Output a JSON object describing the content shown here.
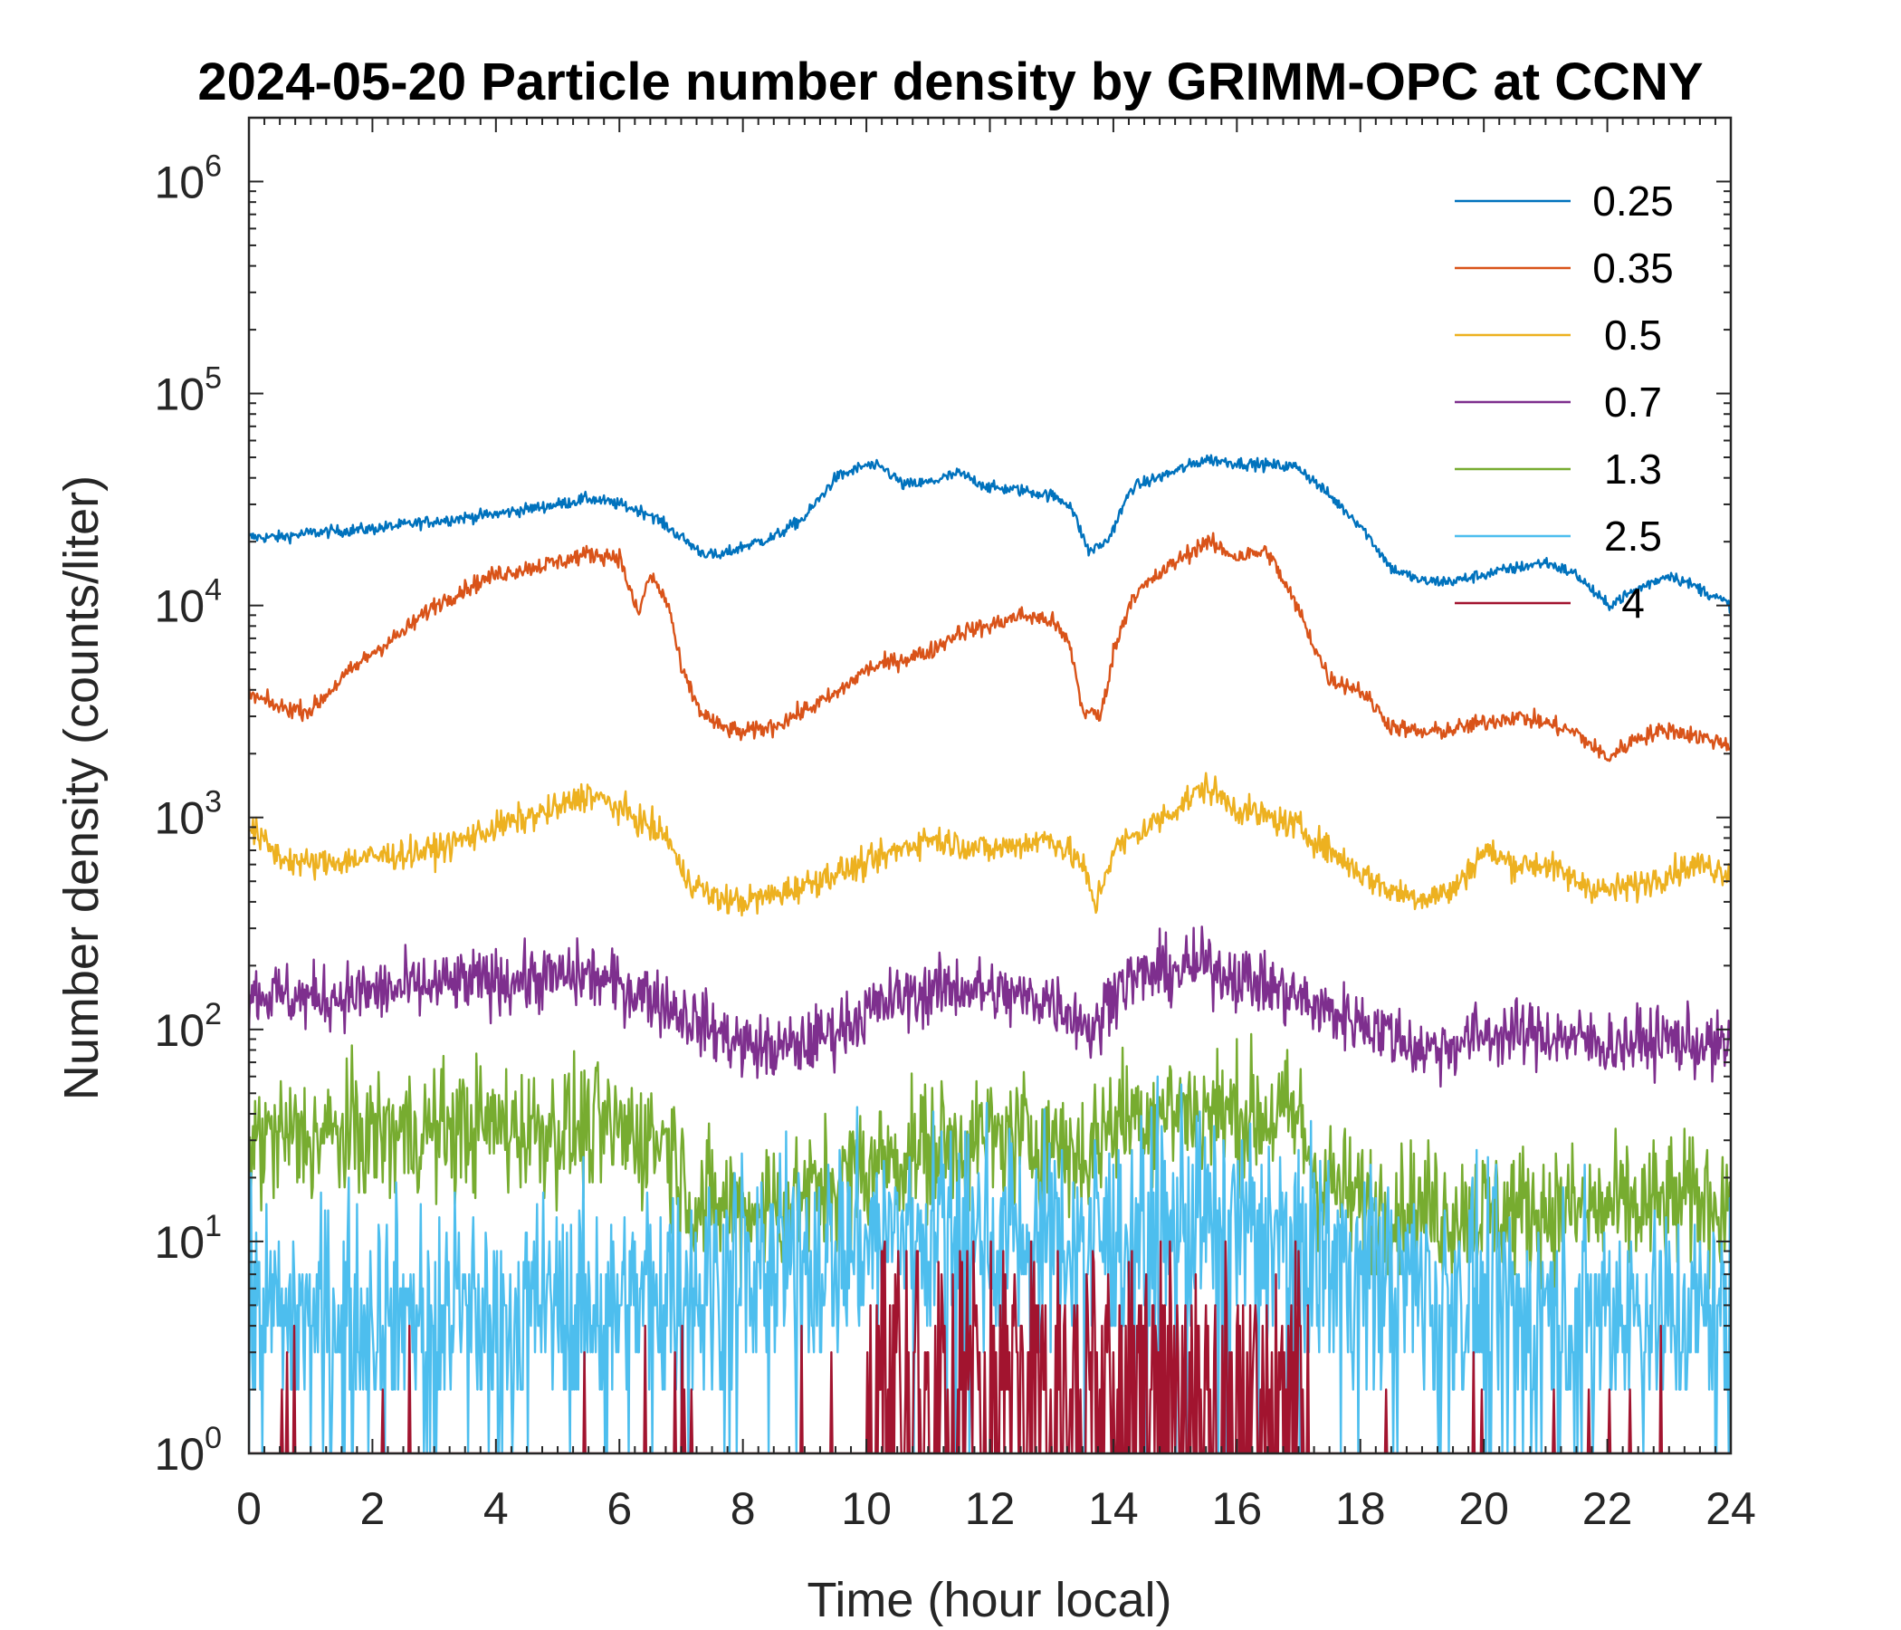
{
  "chart_data": {
    "type": "line",
    "title": "2024-05-20 Particle number density by GRIMM-OPC at CCNY",
    "xlabel": "Time (hour local)",
    "ylabel": "Number density (counts/liter)",
    "xlim": [
      0,
      24
    ],
    "ylim": [
      1,
      2000000
    ],
    "yscale": "log",
    "x_ticks": [
      0,
      2,
      4,
      6,
      8,
      10,
      12,
      14,
      16,
      18,
      20,
      22,
      24
    ],
    "y_ticks": [
      {
        "value": 1,
        "base": "10",
        "exp": "0"
      },
      {
        "value": 10,
        "base": "10",
        "exp": "1"
      },
      {
        "value": 100,
        "base": "10",
        "exp": "2"
      },
      {
        "value": 1000,
        "base": "10",
        "exp": "3"
      },
      {
        "value": 10000,
        "base": "10",
        "exp": "4"
      },
      {
        "value": 100000,
        "base": "10",
        "exp": "5"
      },
      {
        "value": 1000000,
        "base": "10",
        "exp": "6"
      }
    ],
    "legend_position": "top-right",
    "series": [
      {
        "name": "0.25",
        "color": "#0072BD",
        "noise": 0.04,
        "x": [
          0,
          0.5,
          1,
          2,
          3,
          4,
          5,
          5.5,
          6,
          6.5,
          7,
          7.3,
          7.6,
          8,
          8.5,
          9,
          9.5,
          10,
          10.3,
          10.6,
          11,
          11.5,
          12,
          12.5,
          13,
          13.3,
          13.6,
          13.9,
          14.3,
          15,
          15.5,
          16,
          16.5,
          17,
          17.5,
          18,
          18.5,
          19,
          19.5,
          20,
          20.5,
          21,
          21.5,
          22,
          22.5,
          23,
          23.5,
          24
        ],
        "y": [
          21000,
          21000,
          22000,
          23000,
          25000,
          27000,
          30000,
          32000,
          30000,
          27000,
          21000,
          18000,
          17000,
          19000,
          21000,
          26000,
          40000,
          46000,
          44000,
          37000,
          38000,
          42000,
          36000,
          35000,
          33000,
          30000,
          18000,
          20000,
          36000,
          43000,
          49000,
          47000,
          46000,
          45000,
          33000,
          24000,
          15000,
          13000,
          13000,
          14000,
          15000,
          16000,
          14000,
          10000,
          12000,
          14000,
          12000,
          10000
        ]
      },
      {
        "name": "0.35",
        "color": "#D95319",
        "noise": 0.06,
        "x": [
          0,
          0.5,
          1,
          1.5,
          2,
          2.5,
          3,
          3.5,
          4,
          4.5,
          5,
          5.5,
          6,
          6.3,
          6.5,
          6.8,
          7,
          7.3,
          7.6,
          8,
          8.5,
          9,
          9.5,
          10,
          10.5,
          11,
          11.5,
          12,
          12.5,
          13,
          13.3,
          13.5,
          13.8,
          14,
          14.3,
          15,
          15.5,
          16,
          16.5,
          17,
          17.3,
          17.5,
          18,
          18.5,
          19,
          19.5,
          20,
          20.5,
          21,
          21.5,
          22,
          22.5,
          23,
          23.5,
          24
        ],
        "y": [
          3800,
          3300,
          3200,
          4500,
          6000,
          7500,
          10000,
          12000,
          14000,
          15000,
          16000,
          17500,
          17000,
          9000,
          14000,
          10000,
          5000,
          3200,
          2700,
          2500,
          2700,
          3200,
          3800,
          5000,
          5500,
          6000,
          7500,
          8000,
          9000,
          8500,
          6500,
          3200,
          3000,
          6000,
          11000,
          16000,
          20000,
          17000,
          18000,
          9500,
          6000,
          4500,
          4000,
          2700,
          2500,
          2600,
          2800,
          3000,
          2800,
          2500,
          1900,
          2400,
          2600,
          2400,
          2200
        ]
      },
      {
        "name": "0.5",
        "color": "#EDB120",
        "noise": 0.1,
        "x": [
          0,
          0.5,
          1,
          2,
          3,
          4,
          5,
          5.5,
          6,
          6.5,
          6.8,
          7,
          7.5,
          8,
          8.5,
          9,
          9.5,
          10,
          10.5,
          11,
          11.5,
          12,
          12.5,
          13,
          13.5,
          13.7,
          14,
          15,
          15.5,
          16,
          16.5,
          17,
          17.5,
          18,
          18.5,
          19,
          19.5,
          20,
          20.5,
          21,
          21.5,
          22,
          22.5,
          23,
          23.5,
          24
        ],
        "y": [
          900,
          650,
          600,
          650,
          700,
          900,
          1100,
          1300,
          1100,
          900,
          800,
          550,
          420,
          400,
          430,
          480,
          550,
          600,
          700,
          800,
          750,
          700,
          750,
          800,
          600,
          380,
          700,
          1100,
          1400,
          1100,
          1000,
          900,
          700,
          550,
          450,
          420,
          450,
          700,
          600,
          600,
          500,
          450,
          480,
          550,
          600,
          550
        ]
      },
      {
        "name": "0.7",
        "color": "#7E2F8E",
        "noise": 0.22,
        "x": [
          0,
          1,
          2,
          3,
          4,
          5,
          5.5,
          6,
          6.5,
          7,
          7.5,
          8,
          8.5,
          9,
          9.5,
          10,
          10.5,
          11,
          11.5,
          12,
          12.5,
          13,
          13.5,
          13.7,
          14,
          14.5,
          15,
          15.5,
          16,
          16.5,
          17,
          17.5,
          18,
          18.5,
          19,
          19.5,
          20,
          21,
          22,
          23,
          24
        ],
        "y": [
          150,
          140,
          150,
          160,
          170,
          175,
          180,
          160,
          145,
          120,
          100,
          85,
          80,
          85,
          100,
          120,
          140,
          150,
          160,
          150,
          140,
          140,
          110,
          95,
          160,
          180,
          190,
          200,
          180,
          160,
          140,
          120,
          110,
          95,
          80,
          85,
          95,
          95,
          85,
          90,
          80
        ]
      },
      {
        "name": "1.3",
        "color": "#77AC30",
        "noise": 0.45,
        "x": [
          0,
          2,
          4,
          6,
          6.8,
          7.2,
          8,
          9,
          10,
          11,
          12,
          13,
          13.5,
          14,
          15,
          16,
          17,
          17.3,
          18,
          19,
          20,
          21,
          22,
          23,
          24
        ],
        "y": [
          30,
          32,
          35,
          33,
          30,
          15,
          14,
          16,
          22,
          28,
          30,
          30,
          25,
          38,
          42,
          40,
          38,
          20,
          15,
          14,
          14,
          14,
          14,
          15,
          16
        ]
      },
      {
        "name": "2.5",
        "color": "#4DBEEE",
        "noise": 0.75,
        "x": [
          0,
          2,
          4,
          6,
          7,
          8,
          9,
          10,
          11,
          12,
          13,
          14,
          15,
          16,
          17,
          18,
          19,
          20,
          21,
          22,
          23,
          24
        ],
        "y": [
          4.5,
          4.8,
          4.5,
          5,
          6,
          7,
          8,
          10,
          11,
          11,
          10,
          10,
          12,
          12,
          10,
          8,
          6,
          5,
          5,
          5,
          4.5,
          4.5
        ]
      },
      {
        "name": "4",
        "color": "#A2142F",
        "noise": 0,
        "x": [
          0,
          10,
          17
        ],
        "y": [
          1,
          1,
          1
        ]
      }
    ]
  }
}
